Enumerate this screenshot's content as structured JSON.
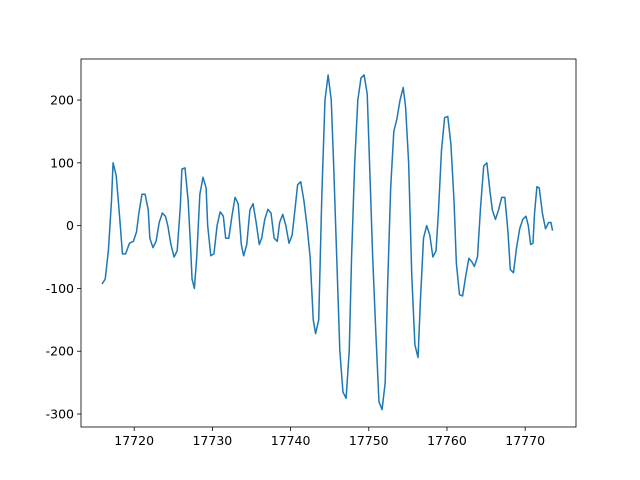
{
  "chart_data": {
    "type": "line",
    "x": [
      17715.9,
      17716.3,
      17716.7,
      17717.1,
      17717.3,
      17717.7,
      17718.1,
      17718.5,
      17718.9,
      17719.4,
      17719.9,
      17720.3,
      17720.6,
      17721.0,
      17721.4,
      17721.8,
      17722.0,
      17722.4,
      17722.8,
      17723.2,
      17723.6,
      17724.0,
      17724.3,
      17724.7,
      17725.1,
      17725.5,
      17725.9,
      17726.1,
      17726.5,
      17726.9,
      17727.2,
      17727.4,
      17727.7,
      17728.0,
      17728.4,
      17728.8,
      17729.2,
      17729.4,
      17729.8,
      17730.2,
      17730.6,
      17731.0,
      17731.4,
      17731.7,
      17732.1,
      17732.5,
      17732.9,
      17733.3,
      17733.7,
      17734.0,
      17734.4,
      17734.8,
      17735.2,
      17735.6,
      17736.0,
      17736.3,
      17736.7,
      17737.1,
      17737.5,
      17737.9,
      17738.3,
      17738.6,
      17739.0,
      17739.4,
      17739.8,
      17740.2,
      17740.6,
      17740.9,
      17741.3,
      17741.7,
      17742.1,
      17742.5,
      17742.9,
      17743.2,
      17743.6,
      17744.0,
      17744.4,
      17744.8,
      17745.2,
      17745.5,
      17745.9,
      17746.3,
      17746.7,
      17747.1,
      17747.5,
      17747.8,
      17748.2,
      17748.6,
      17749.0,
      17749.4,
      17749.8,
      17750.1,
      17750.5,
      17750.9,
      17751.3,
      17751.7,
      17752.1,
      17752.4,
      17752.8,
      17753.2,
      17753.6,
      17754.0,
      17754.4,
      17754.7,
      17755.1,
      17755.5,
      17755.9,
      17756.3,
      17756.6,
      17757.0,
      17757.4,
      17757.8,
      17758.2,
      17758.6,
      17758.9,
      17759.3,
      17759.7,
      17760.1,
      17760.5,
      17760.9,
      17761.2,
      17761.6,
      17762.0,
      17762.4,
      17762.8,
      17763.2,
      17763.5,
      17763.9,
      17764.3,
      17764.7,
      17765.1,
      17765.5,
      17765.8,
      17766.2,
      17766.6,
      17767.0,
      17767.4,
      17767.8,
      17768.1,
      17768.5,
      17768.9,
      17769.3,
      17769.7,
      17770.1,
      17770.4,
      17770.7,
      17771.0,
      17771.2,
      17771.5,
      17771.8,
      17772.2,
      17772.6,
      17773.0,
      17773.3,
      17773.5
    ],
    "series": [
      {
        "color": "#1f77b4",
        "values": [
          -93,
          -85,
          -40,
          40,
          100,
          80,
          20,
          -45,
          -45,
          -28,
          -25,
          -10,
          20,
          50,
          50,
          25,
          -20,
          -35,
          -25,
          5,
          20,
          15,
          0,
          -30,
          -50,
          -40,
          30,
          90,
          92,
          40,
          -30,
          -85,
          -100,
          -50,
          50,
          77,
          60,
          0,
          -48,
          -45,
          0,
          22,
          15,
          -20,
          -20,
          15,
          45,
          35,
          -30,
          -48,
          -30,
          25,
          35,
          5,
          -30,
          -20,
          10,
          26,
          20,
          -20,
          -25,
          5,
          18,
          0,
          -28,
          -15,
          30,
          65,
          70,
          40,
          0,
          -50,
          -150,
          -172,
          -150,
          50,
          200,
          240,
          200,
          100,
          -50,
          -200,
          -265,
          -275,
          -200,
          -50,
          100,
          200,
          235,
          240,
          210,
          100,
          -50,
          -170,
          -280,
          -293,
          -250,
          -100,
          60,
          150,
          170,
          200,
          220,
          190,
          100,
          -80,
          -190,
          -210,
          -120,
          -20,
          0,
          -15,
          -50,
          -40,
          20,
          120,
          172,
          174,
          130,
          40,
          -60,
          -110,
          -112,
          -80,
          -52,
          -58,
          -65,
          -50,
          30,
          95,
          100,
          55,
          25,
          10,
          25,
          45,
          45,
          -10,
          -70,
          -75,
          -35,
          -5,
          10,
          15,
          0,
          -30,
          -28,
          20,
          62,
          60,
          20,
          -5,
          5,
          5,
          -8
        ]
      }
    ],
    "xlim": [
      17713.2,
      17776.5
    ],
    "xticks": [
      17720,
      17730,
      17740,
      17750,
      17760,
      17770
    ],
    "ylim": [
      -320.7,
      265.4
    ],
    "yticks": [
      -300,
      -200,
      -100,
      0,
      100,
      200
    ]
  }
}
